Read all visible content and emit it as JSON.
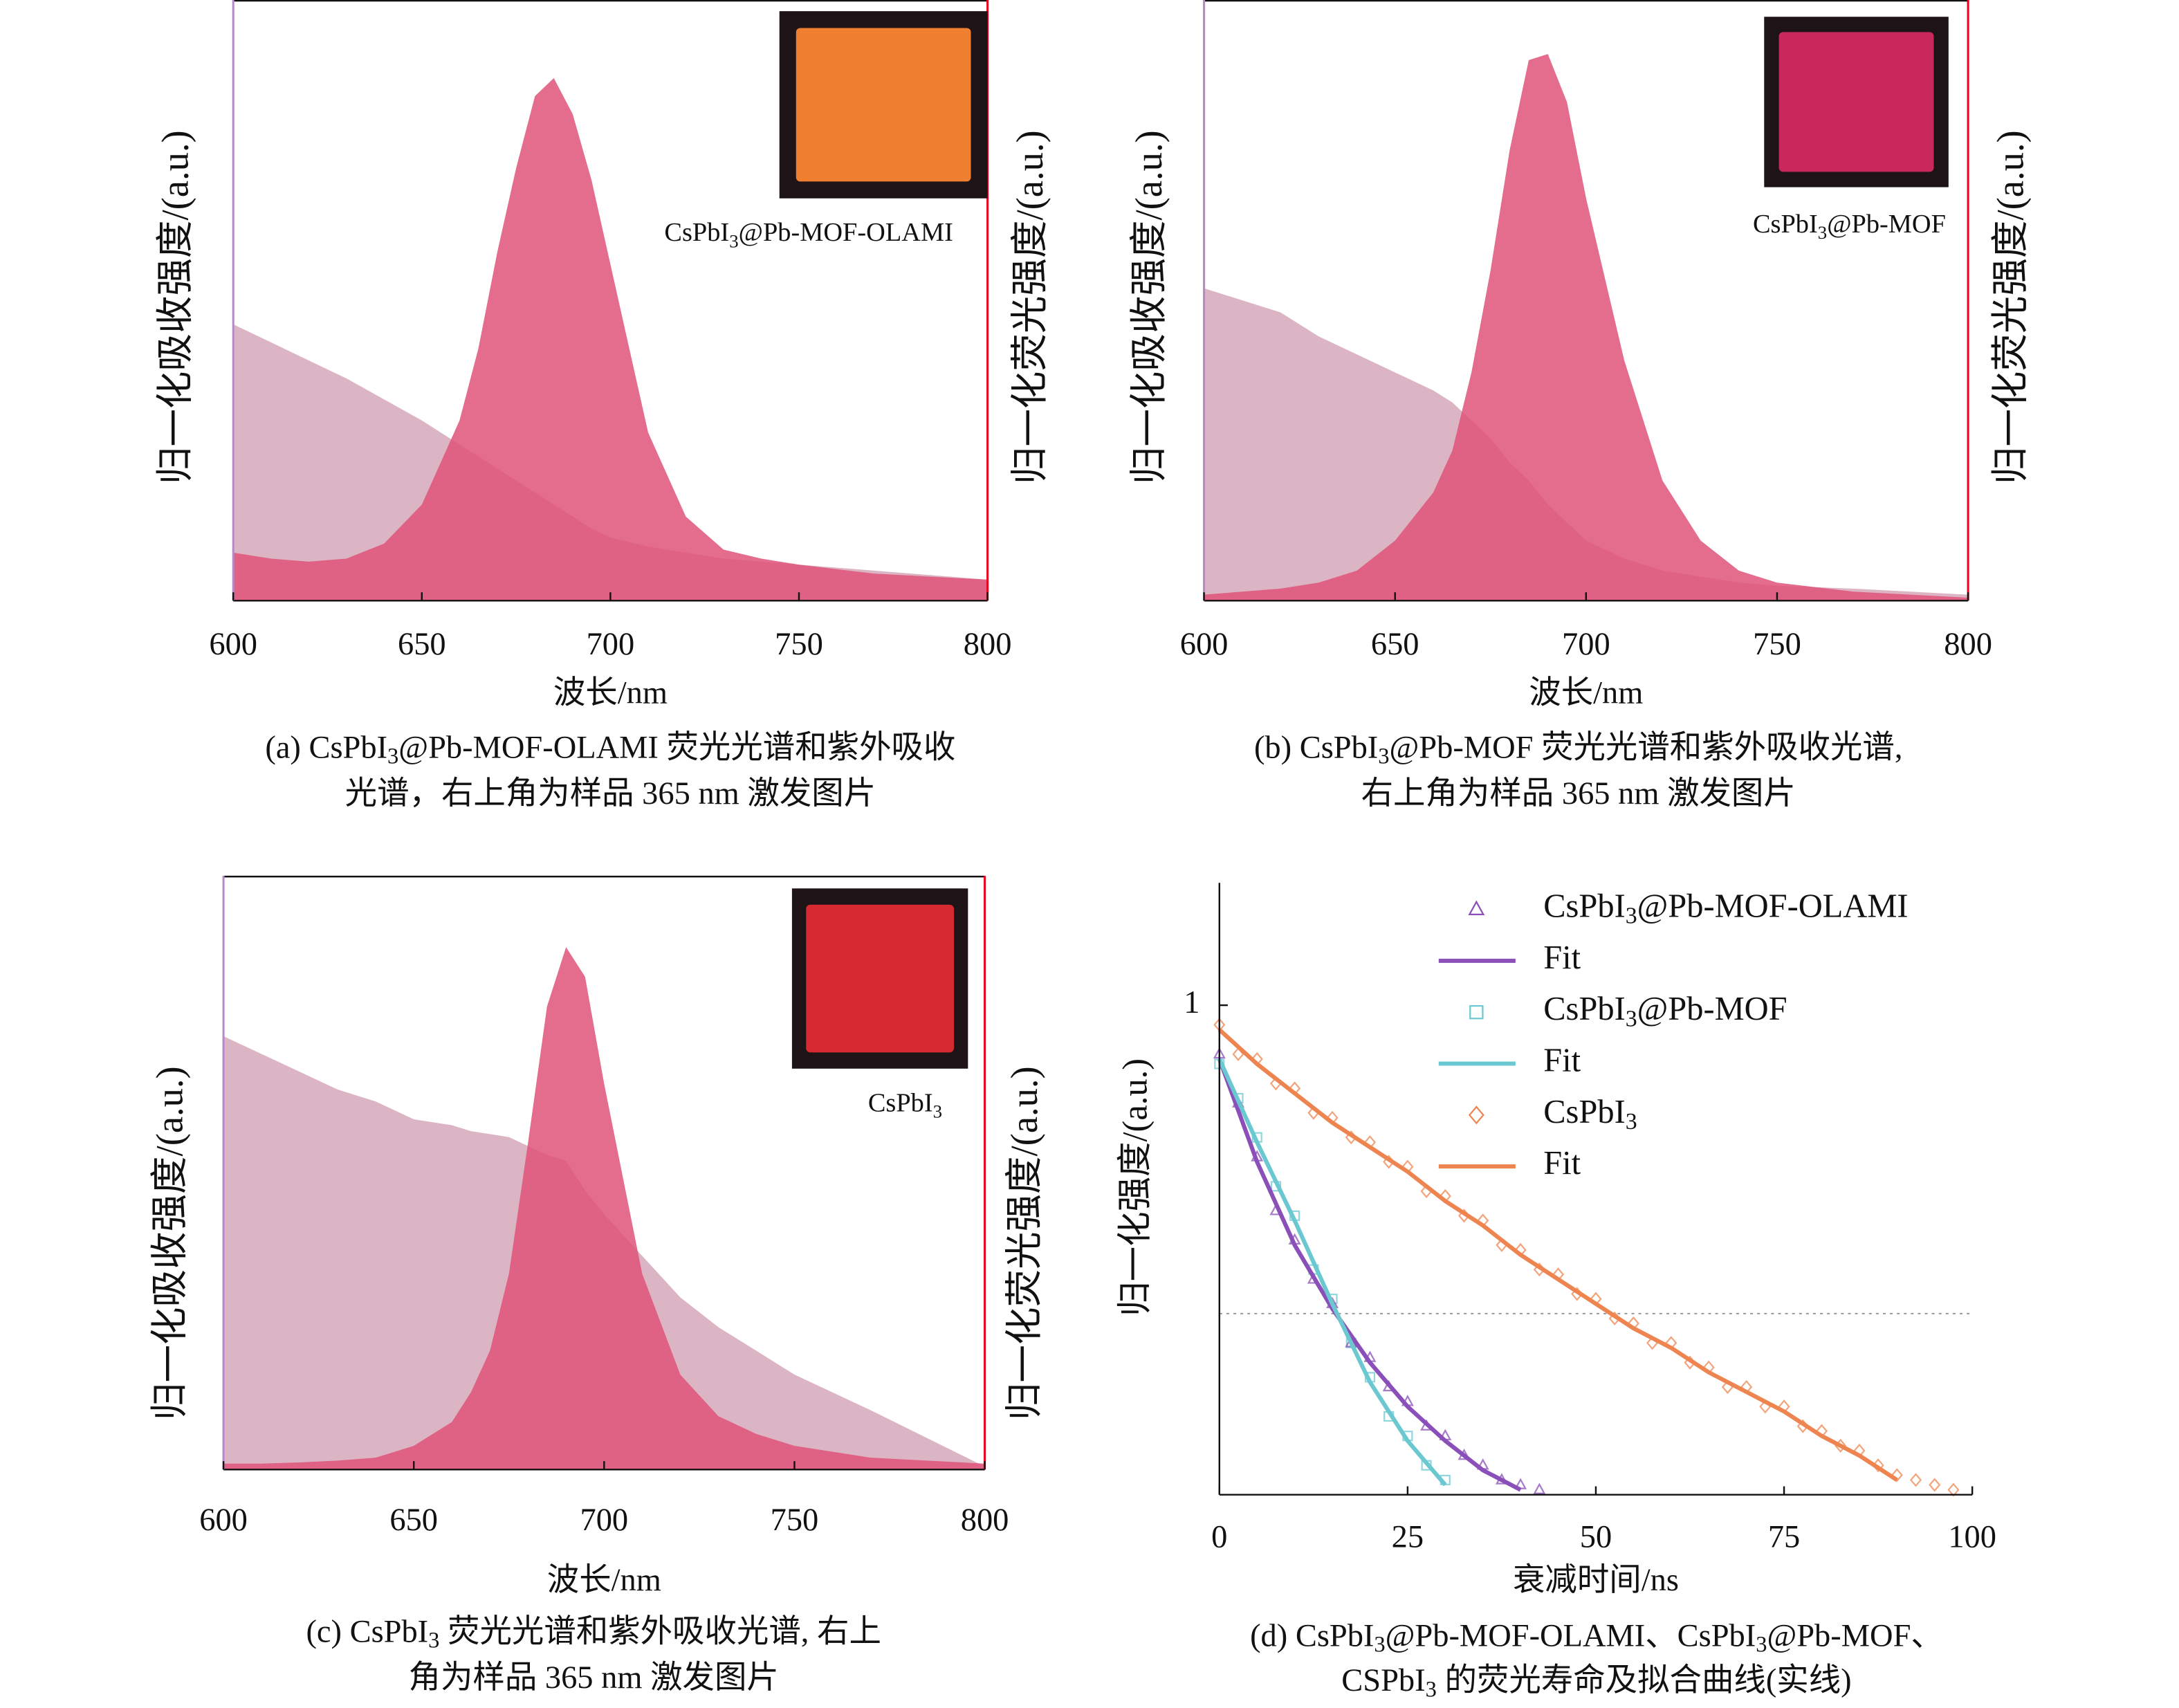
{
  "chart_data": [
    {
      "type": "area",
      "caption": [
        "(a) CsPbI3@Pb-MOF-OLAMI 荧光光谱和紫外吸收",
        "光谱，右上角为样品 365 nm 激发图片"
      ],
      "xlabel": "波长/nm",
      "ylabel": "归一化吸收强度/(a.u.)",
      "ylabel_color": "#b48ac8",
      "y2label": "归一化荧光强度/(a.u.)",
      "y2label_color": "#e8001c",
      "inset_label": "CsPbI3@Pb-MOF-OLAMI",
      "inset_color": "#f08030",
      "xlim": [
        600,
        800
      ],
      "xticks": [
        600,
        650,
        700,
        750,
        800
      ],
      "ylim": [
        0,
        1
      ],
      "y2lim": [
        0,
        1
      ],
      "x": [
        600,
        610,
        620,
        630,
        640,
        650,
        660,
        665,
        670,
        675,
        680,
        685,
        690,
        695,
        700,
        710,
        720,
        730,
        740,
        750,
        770,
        800
      ],
      "series": [
        {
          "color": "#d3a3b5",
          "values": [
            0.46,
            0.43,
            0.4,
            0.37,
            0.335,
            0.3,
            0.26,
            0.24,
            0.22,
            0.2,
            0.18,
            0.16,
            0.14,
            0.12,
            0.105,
            0.09,
            0.08,
            0.07,
            0.065,
            0.06,
            0.05,
            0.035
          ]
        },
        {
          "color": "#df5279",
          "axis": "y2",
          "values": [
            0.08,
            0.07,
            0.065,
            0.07,
            0.095,
            0.16,
            0.3,
            0.42,
            0.58,
            0.72,
            0.84,
            0.87,
            0.81,
            0.7,
            0.56,
            0.28,
            0.14,
            0.085,
            0.07,
            0.06,
            0.045,
            0.035
          ]
        }
      ]
    },
    {
      "type": "area",
      "caption": [
        "(b) CsPbI3@Pb-MOF 荧光光谱和紫外吸收光谱,",
        "右上角为样品 365 nm 激发图片"
      ],
      "xlabel": "波长/nm",
      "ylabel": "归一化吸收强度/(a.u.)",
      "ylabel_color": "#b48ac8",
      "y2label": "归一化荧光强度/(a.u.)",
      "y2label_color": "#e8001c",
      "inset_label": "CsPbI3@Pb-MOF",
      "inset_color": "#c8285a",
      "xlim": [
        600,
        800
      ],
      "xticks": [
        600,
        650,
        700,
        750,
        800
      ],
      "ylim": [
        0,
        1
      ],
      "y2lim": [
        0,
        1
      ],
      "x": [
        600,
        610,
        620,
        630,
        640,
        650,
        660,
        665,
        670,
        675,
        680,
        685,
        690,
        695,
        700,
        710,
        720,
        730,
        740,
        750,
        770,
        800
      ],
      "series": [
        {
          "color": "#d3a3b5",
          "values": [
            0.52,
            0.5,
            0.48,
            0.44,
            0.41,
            0.38,
            0.35,
            0.33,
            0.3,
            0.27,
            0.23,
            0.2,
            0.16,
            0.13,
            0.1,
            0.07,
            0.05,
            0.04,
            0.03,
            0.025,
            0.02,
            0.01
          ]
        },
        {
          "color": "#df5279",
          "axis": "y2",
          "values": [
            0.01,
            0.015,
            0.02,
            0.03,
            0.05,
            0.1,
            0.18,
            0.25,
            0.38,
            0.55,
            0.75,
            0.9,
            0.91,
            0.83,
            0.67,
            0.4,
            0.2,
            0.1,
            0.05,
            0.03,
            0.015,
            0.005
          ]
        }
      ]
    },
    {
      "type": "area",
      "caption": [
        "(c) CsPbI3 荧光光谱和紫外吸收光谱, 右上",
        "角为样品 365 nm 激发图片"
      ],
      "xlabel": "波长/nm",
      "ylabel": "归一化吸收强度/(a.u.)",
      "ylabel_color": "#b48ac8",
      "y2label": "归一化荧光强度/(a.u.)",
      "y2label_color": "#e8001c",
      "inset_label": "CsPbI3",
      "inset_color": "#d42a30",
      "xlim": [
        600,
        800
      ],
      "xticks": [
        600,
        650,
        700,
        750,
        800
      ],
      "ylim": [
        0,
        1
      ],
      "y2lim": [
        0,
        1
      ],
      "x": [
        600,
        610,
        620,
        630,
        640,
        650,
        660,
        665,
        670,
        675,
        680,
        685,
        690,
        695,
        700,
        710,
        720,
        730,
        740,
        750,
        770,
        800
      ],
      "series": [
        {
          "color": "#d3a3b5",
          "values": [
            0.73,
            0.7,
            0.67,
            0.64,
            0.62,
            0.59,
            0.58,
            0.57,
            0.565,
            0.56,
            0.545,
            0.53,
            0.52,
            0.47,
            0.43,
            0.36,
            0.29,
            0.24,
            0.2,
            0.16,
            0.1,
            0.005
          ]
        },
        {
          "color": "#df5279",
          "axis": "y2",
          "values": [
            0.01,
            0.01,
            0.012,
            0.015,
            0.02,
            0.04,
            0.08,
            0.13,
            0.2,
            0.33,
            0.55,
            0.78,
            0.88,
            0.83,
            0.65,
            0.33,
            0.16,
            0.09,
            0.06,
            0.04,
            0.02,
            0.01
          ]
        }
      ]
    },
    {
      "type": "scatter",
      "caption": [
        "(d) CsPbI3@Pb-MOF-OLAMI、CsPbI3@Pb-MOF、",
        "CSPbI3 的荧光寿命及拟合曲线(实线)"
      ],
      "xlabel": "衰减时间/ns",
      "ylabel": "归一化强度/(a.u.)",
      "xlim": [
        0,
        100
      ],
      "xticks": [
        0,
        25,
        50,
        75,
        100
      ],
      "ylim": [
        0,
        1.25
      ],
      "yticks": [
        1
      ],
      "hlines": [
        0.37
      ],
      "legend": "upper right",
      "series": [
        {
          "name": "CsPbI3@Pb-MOF-OLAMI",
          "type": "scatter",
          "marker": "triangle",
          "color": "#8a4fb8",
          "x": [
            0,
            2.5,
            5,
            7.5,
            10,
            12.5,
            15,
            17.5,
            20,
            22.5,
            25,
            27.5,
            30,
            32.5,
            35,
            37.5,
            40,
            42.5
          ],
          "values": [
            0.9,
            0.8,
            0.69,
            0.58,
            0.52,
            0.44,
            0.39,
            0.31,
            0.28,
            0.22,
            0.19,
            0.14,
            0.12,
            0.08,
            0.06,
            0.03,
            0.02,
            0.01
          ]
        },
        {
          "name": "Fit",
          "type": "line",
          "color": "#8a4fb8",
          "x": [
            0,
            5,
            10,
            15,
            20,
            25,
            30,
            35,
            40
          ],
          "values": [
            0.89,
            0.68,
            0.51,
            0.38,
            0.27,
            0.18,
            0.11,
            0.05,
            0.01
          ]
        },
        {
          "name": "CsPbI3@Pb-MOF",
          "type": "scatter",
          "marker": "square",
          "color": "#6cc8d0",
          "x": [
            0,
            2.5,
            5,
            7.5,
            10,
            12.5,
            15,
            17.5,
            20,
            22.5,
            25,
            27.5,
            30
          ],
          "values": [
            0.88,
            0.81,
            0.73,
            0.63,
            0.57,
            0.46,
            0.4,
            0.31,
            0.24,
            0.16,
            0.12,
            0.06,
            0.03
          ]
        },
        {
          "name": "Fit",
          "type": "line",
          "color": "#6cc8d0",
          "x": [
            0,
            5,
            10,
            15,
            20,
            25,
            30
          ],
          "values": [
            0.89,
            0.72,
            0.56,
            0.39,
            0.23,
            0.11,
            0.02
          ]
        },
        {
          "name": "CsPbI3",
          "type": "scatter",
          "marker": "diamond",
          "color": "#ee8550",
          "x": [
            0,
            2.5,
            5,
            7.5,
            10,
            12.5,
            15,
            17.5,
            20,
            22.5,
            25,
            27.5,
            30,
            32.5,
            35,
            37.5,
            40,
            42.5,
            45,
            47.5,
            50,
            52.5,
            55,
            57.5,
            60,
            62.5,
            65,
            67.5,
            70,
            72.5,
            75,
            77.5,
            80,
            82.5,
            85,
            87.5,
            90,
            92.5,
            95,
            97.5
          ],
          "values": [
            0.96,
            0.9,
            0.89,
            0.84,
            0.83,
            0.78,
            0.77,
            0.73,
            0.72,
            0.68,
            0.67,
            0.62,
            0.61,
            0.57,
            0.56,
            0.51,
            0.5,
            0.46,
            0.45,
            0.41,
            0.4,
            0.36,
            0.35,
            0.31,
            0.31,
            0.27,
            0.26,
            0.22,
            0.22,
            0.18,
            0.18,
            0.14,
            0.13,
            0.1,
            0.09,
            0.06,
            0.04,
            0.03,
            0.02,
            0.01
          ]
        },
        {
          "name": "Fit",
          "type": "line",
          "color": "#ee8550",
          "x": [
            0,
            5,
            10,
            15,
            20,
            25,
            30,
            35,
            40,
            45,
            50,
            55,
            60,
            65,
            70,
            75,
            80,
            85,
            90
          ],
          "values": [
            0.95,
            0.88,
            0.82,
            0.76,
            0.71,
            0.66,
            0.6,
            0.55,
            0.49,
            0.44,
            0.39,
            0.34,
            0.3,
            0.25,
            0.21,
            0.17,
            0.12,
            0.08,
            0.03
          ]
        }
      ]
    }
  ]
}
